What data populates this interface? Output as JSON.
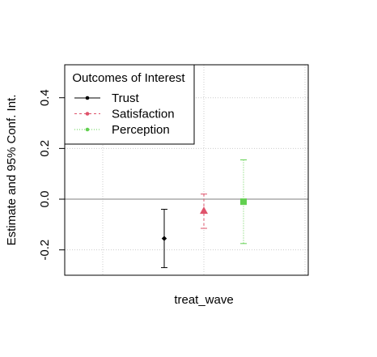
{
  "chart_data": {
    "type": "scatter",
    "subtype": "coefficient-plot-with-error-bars",
    "ylabel": "Estimate and 95% Conf. Int.",
    "xlabel": "",
    "categories": [
      "treat_wave"
    ],
    "ylim": [
      -0.3,
      0.53
    ],
    "yticks": [
      -0.2,
      0.0,
      0.2,
      0.4
    ],
    "ytick_labels": [
      "-0.2",
      "0.0",
      "0.2",
      "0.4"
    ],
    "grid": true,
    "reference_line": 0.0,
    "legend": {
      "title": "Outcomes of Interest",
      "position": "top-left"
    },
    "series": [
      {
        "name": "Trust",
        "estimate": -0.155,
        "ci_low": -0.27,
        "ci_high": -0.04,
        "color": "#000000",
        "marker": "diamond",
        "line": "solid"
      },
      {
        "name": "Satisfaction",
        "estimate": -0.045,
        "ci_low": -0.115,
        "ci_high": 0.02,
        "color": "#DF536B",
        "marker": "triangle",
        "line": "dashed"
      },
      {
        "name": "Perception",
        "estimate": -0.01,
        "ci_low": -0.175,
        "ci_high": 0.155,
        "color": "#61D04F",
        "marker": "square",
        "line": "dotted"
      }
    ]
  }
}
